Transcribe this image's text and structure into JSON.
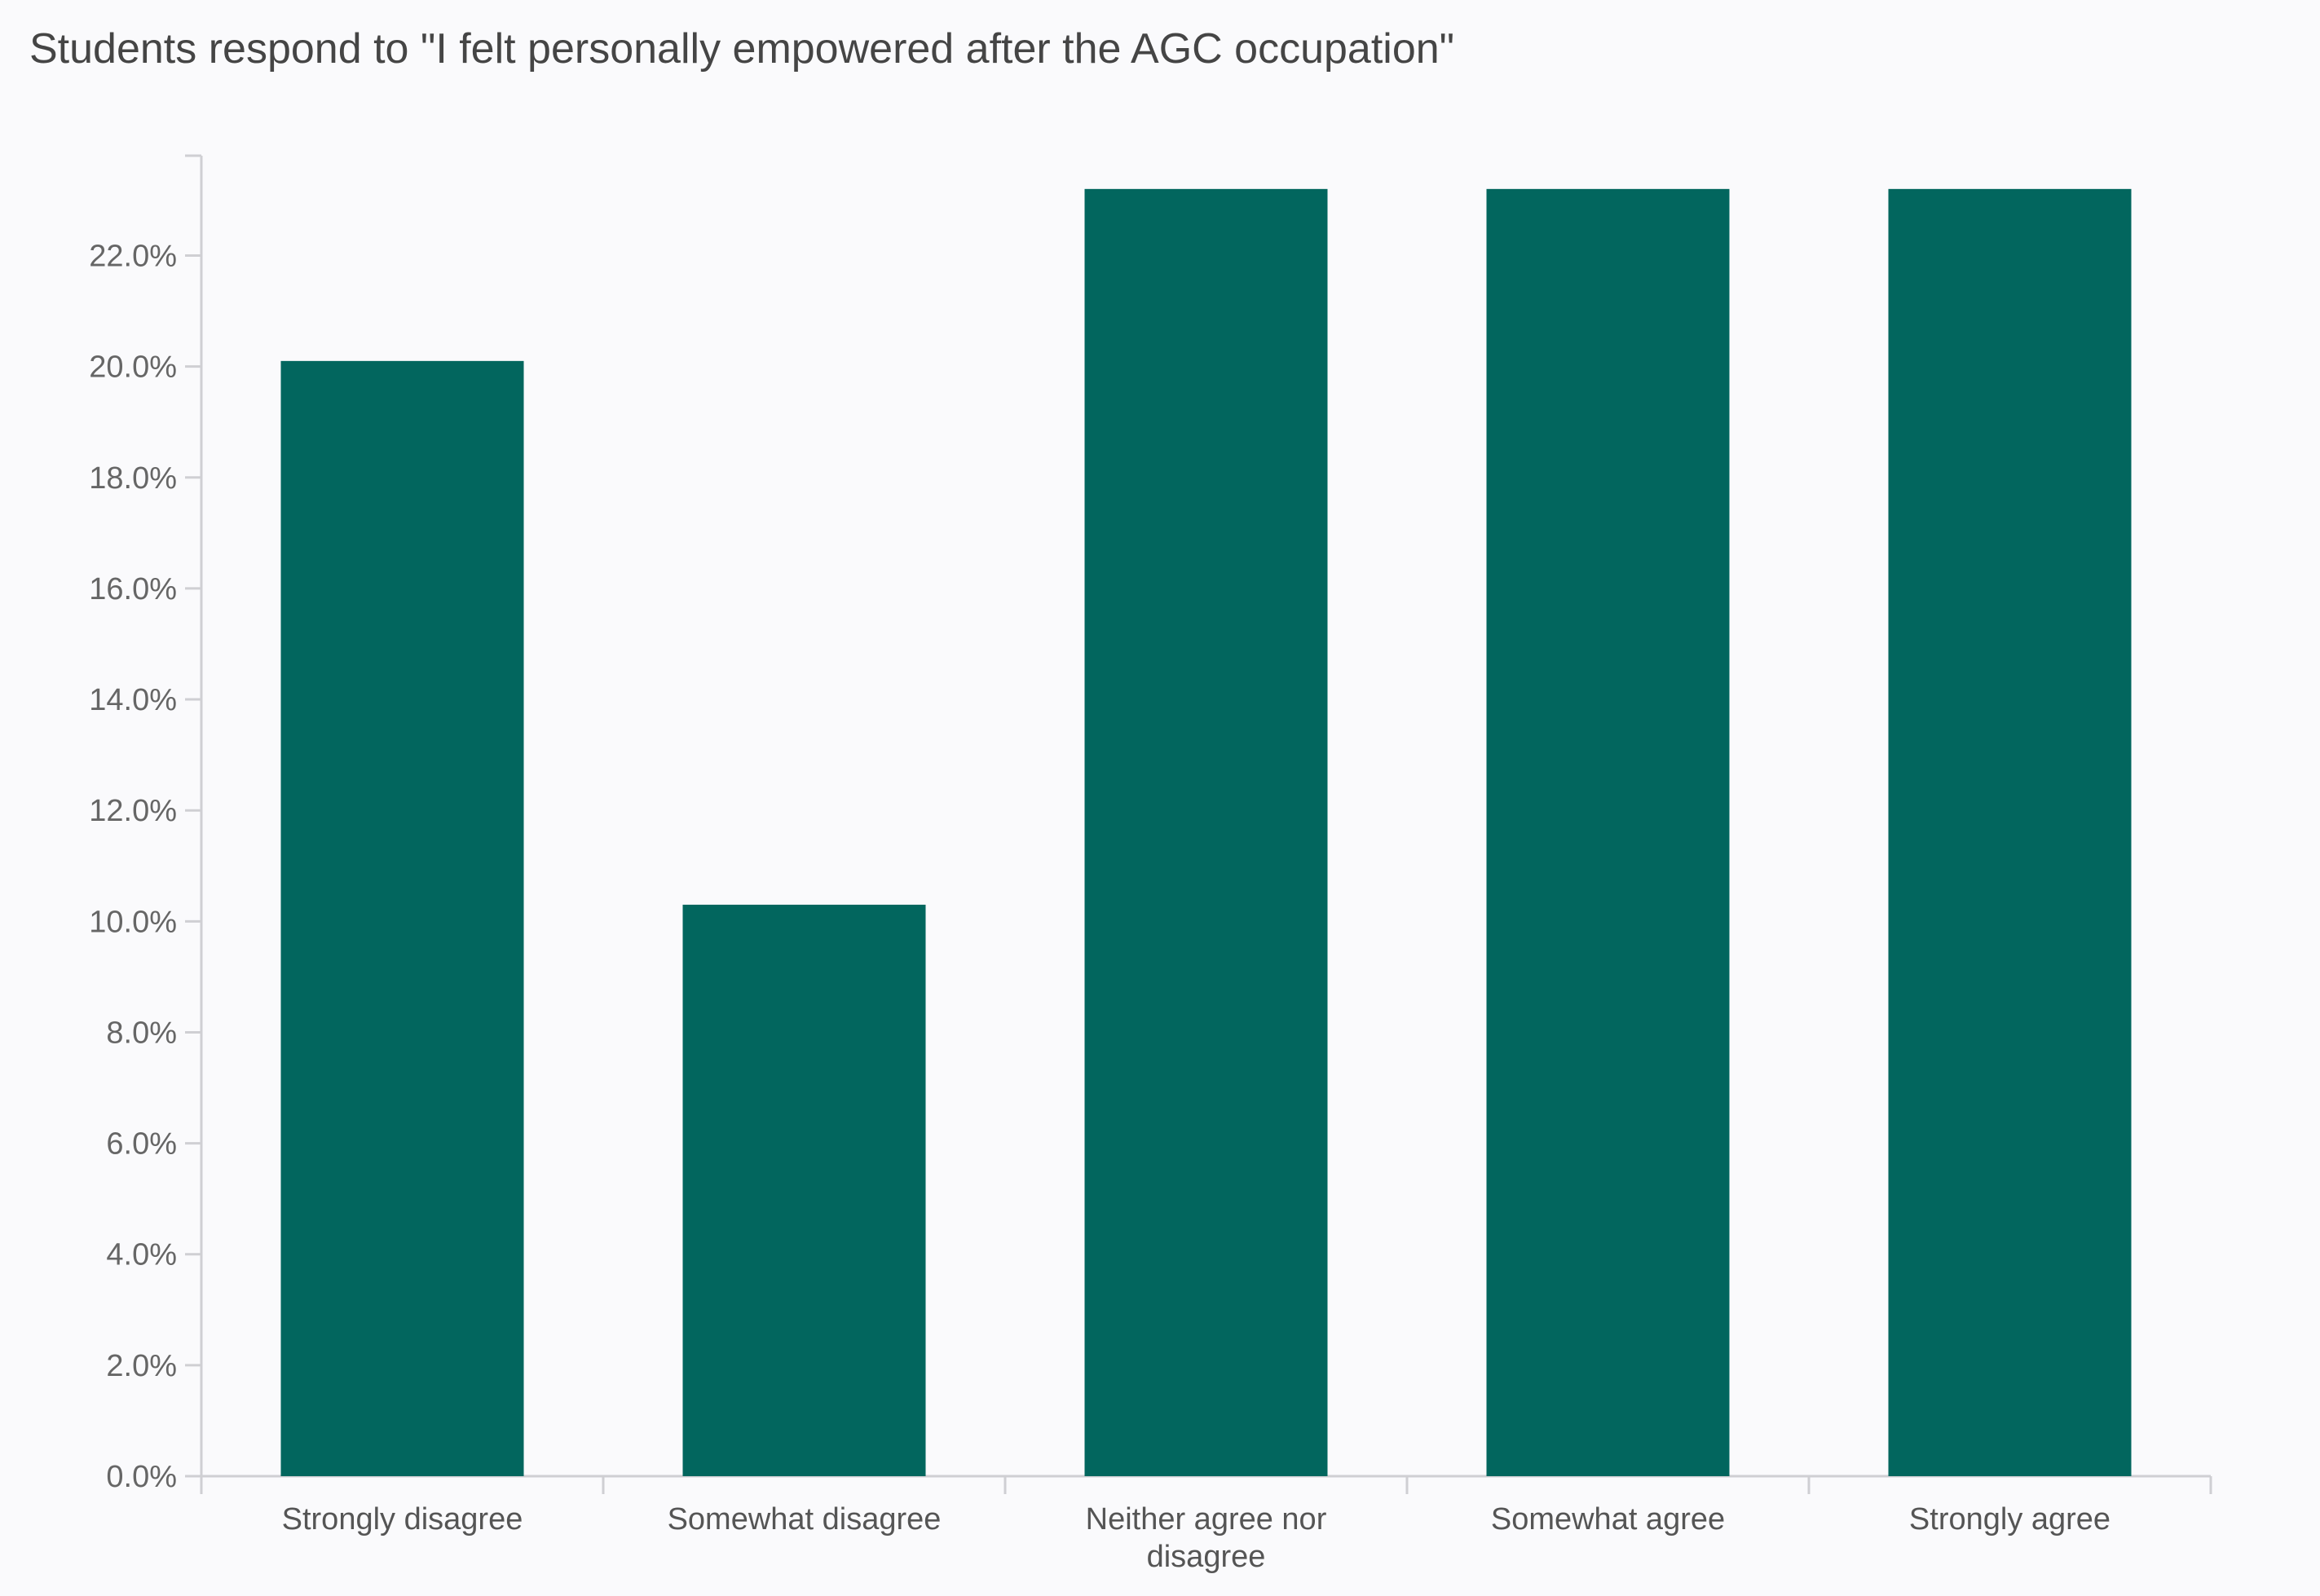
{
  "chart_data": {
    "type": "bar",
    "title": "Students respond to \"I felt personally empowered after the AGC occupation\"",
    "categories": [
      "Strongly disagree",
      "Somewhat disagree",
      "Neither agree nor disagree",
      "Somewhat agree",
      "Strongly agree"
    ],
    "values": [
      20.1,
      10.3,
      23.2,
      23.2,
      23.2
    ],
    "unit": "%",
    "xlabel": "",
    "ylabel": "",
    "ylim": [
      0,
      23.8
    ],
    "yticks": [
      "0.0%",
      "2.0%",
      "4.0%",
      "6.0%",
      "8.0%",
      "10.0%",
      "12.0%",
      "14.0%",
      "16.0%",
      "18.0%",
      "20.0%",
      "22.0%"
    ],
    "grid": false,
    "legend": "none",
    "bar_color": "#02665e",
    "axis_color": "#cfcfd3"
  }
}
